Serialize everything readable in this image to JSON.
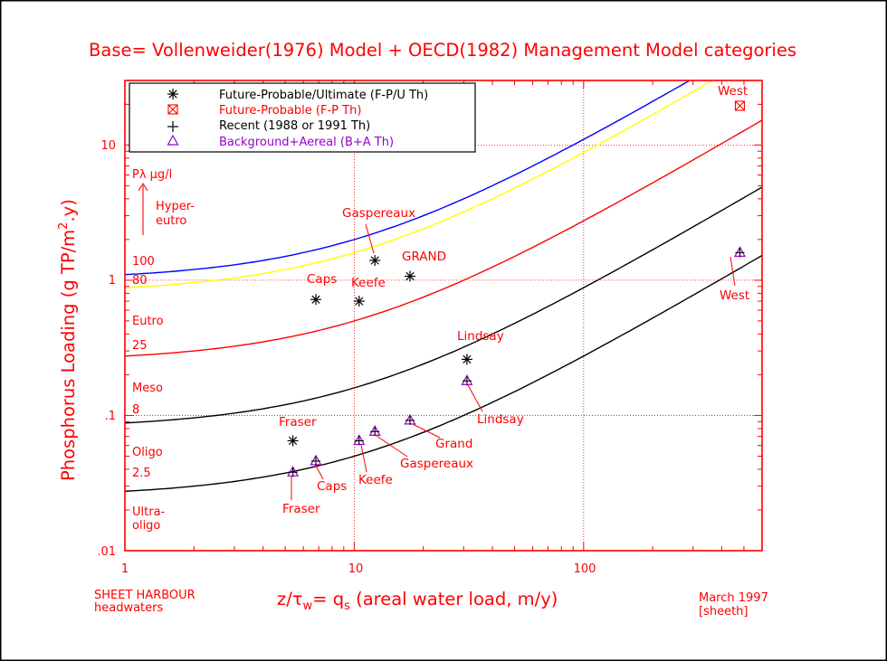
{
  "chart_data": {
    "type": "scatter",
    "title": "Base= Vollenweider(1976) Model + OECD(1982) Management Model categories",
    "xlabel": "z/τw= qs (areal water load, m/y)",
    "ylabel": "Phosphorus Loading (g TP/m2.y)",
    "xlabel_parts": {
      "a": "z/τ",
      "b": "w",
      "c": "= q",
      "d": "s",
      "e": " (areal water load, m/y)"
    },
    "ylabel_parts": {
      "a": "Phosphorus Loading (g TP/m",
      "b": "2",
      "c": ".y)"
    },
    "x_scale": "log",
    "y_scale": "log",
    "xlim": [
      1,
      600
    ],
    "ylim": [
      0.01,
      30
    ],
    "x_ticks": [
      {
        "v": 1,
        "label": "1"
      },
      {
        "v": 10,
        "label": "10"
      },
      {
        "v": 100,
        "label": "100"
      }
    ],
    "y_ticks": [
      {
        "v": 0.01,
        "label": ".01"
      },
      {
        "v": 0.1,
        "label": ".1"
      },
      {
        "v": 1,
        "label": "1"
      },
      {
        "v": 10,
        "label": "10"
      }
    ],
    "grid": true,
    "legend_position": "top-left",
    "legend": [
      {
        "symbol": "asterisk",
        "label": "Future-Probable/Ultimate (F-P/U Th)",
        "color": "#000000"
      },
      {
        "symbol": "boxed-x",
        "label": "Future-Probable (F-P Th)",
        "color": "#ff0000"
      },
      {
        "symbol": "plus",
        "label": "Recent (1988 or 1991 Th)",
        "color": "#000000"
      },
      {
        "symbol": "triangle",
        "label": "Background+Aereal (B+A Th)",
        "color": "#9900cc"
      }
    ],
    "curves": [
      {
        "name": "100",
        "color": "#0000ff",
        "p": 100
      },
      {
        "name": "80",
        "color": "#ffff00",
        "p": 80
      },
      {
        "name": "25",
        "color": "#ff0000",
        "p": 25
      },
      {
        "name": "8",
        "color": "#000000",
        "p": 8
      },
      {
        "name": "2.5",
        "color": "#000000",
        "p": 2.5
      }
    ],
    "curve_model": "L = P*(q + 10)/1000",
    "series": [
      {
        "name": "Future-Probable/Ultimate",
        "symbol": "asterisk",
        "points": [
          {
            "x": 12.3,
            "y": 1.4
          },
          {
            "x": 17.5,
            "y": 1.07
          },
          {
            "x": 6.8,
            "y": 0.72
          },
          {
            "x": 10.5,
            "y": 0.7
          },
          {
            "x": 31,
            "y": 0.26
          },
          {
            "x": 5.4,
            "y": 0.065
          }
        ]
      },
      {
        "name": "Future-Probable",
        "symbol": "boxed-x",
        "points": [
          {
            "x": 480,
            "y": 19.5
          }
        ]
      },
      {
        "name": "Background+Aereal",
        "symbol": "triangle",
        "points": [
          {
            "x": 480,
            "y": 1.6
          },
          {
            "x": 31,
            "y": 0.18
          },
          {
            "x": 17.5,
            "y": 0.092
          },
          {
            "x": 12.3,
            "y": 0.076
          },
          {
            "x": 10.5,
            "y": 0.065
          },
          {
            "x": 6.8,
            "y": 0.046
          },
          {
            "x": 5.4,
            "y": 0.038
          }
        ]
      },
      {
        "name": "Recent",
        "symbol": "plus",
        "points": [
          {
            "x": 480,
            "y": 1.6
          },
          {
            "x": 31,
            "y": 0.18
          },
          {
            "x": 17.5,
            "y": 0.092
          },
          {
            "x": 12.3,
            "y": 0.076
          },
          {
            "x": 10.5,
            "y": 0.065
          },
          {
            "x": 6.8,
            "y": 0.046
          },
          {
            "x": 5.4,
            "y": 0.038
          }
        ]
      }
    ],
    "trophic_labels": {
      "p_unit": "Pλ µg/l",
      "hyper1": "Hyper-",
      "hyper2": "eutro",
      "v100": "100",
      "v80": "80",
      "eutro": "Eutro",
      "v25": "25",
      "meso": "Meso",
      "v8": "8",
      "oligo": "Oligo",
      "v25b": "2.5",
      "ultra1": "Ultra-",
      "ultra2": "oligo"
    },
    "annotations": {
      "upper_west": "West",
      "upper_gaspereaux": "Gaspereaux",
      "upper_grand": "GRAND",
      "upper_caps": "Caps",
      "upper_keefe": "Keefe",
      "upper_lindsay": "Lindsay",
      "upper_fraser": "Fraser",
      "lower_west": "West",
      "lower_lindsay": "Lindsay",
      "lower_grand": "Grand",
      "lower_gaspereaux": "Gaspereaux",
      "lower_keefe": "Keefe",
      "lower_caps": "Caps",
      "lower_fraser": "Fraser"
    },
    "footer_left_1": "SHEET HARBOUR",
    "footer_left_2": "headwaters",
    "footer_right_1": "March 1997",
    "footer_right_2": "[sheeth]"
  }
}
